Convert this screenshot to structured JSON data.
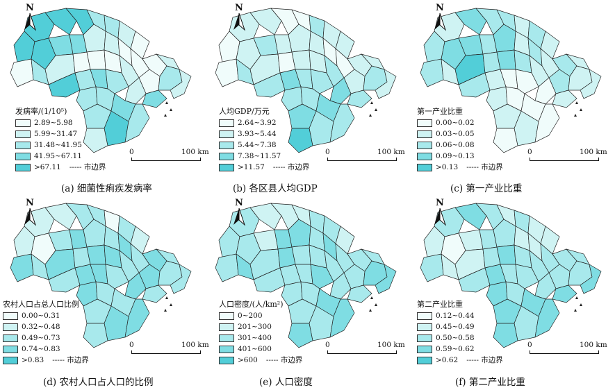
{
  "north_label": "N",
  "boundary_label": "----- 市边界",
  "scale": {
    "zero": "0",
    "dist": "100 km"
  },
  "colors": [
    "#f0fcfb",
    "#cff3f3",
    "#a8e9ec",
    "#7fdde3",
    "#52ced8"
  ],
  "panels": [
    {
      "caption": "(a) 细菌性痢疾发病率",
      "legend_title": "发病率/(1/10⁵)",
      "legend": [
        "2.89~5.98",
        "5.99~31.47",
        "31.48~41.95",
        "41.95~67.11",
        ">67.11"
      ]
    },
    {
      "caption": "(b) 各区县人均GDP",
      "legend_title": "人均GDP/万元",
      "legend": [
        "2.64~3.92",
        "3.93~5.44",
        "5.44~7.38",
        "7.38~11.57",
        ">11.57"
      ]
    },
    {
      "caption": "(c) 第一产业比重",
      "legend_title": "第一产业比重",
      "legend": [
        "0.00~0.02",
        "0.03~0.05",
        "0.06~0.08",
        "0.09~0.13",
        ">0.13"
      ]
    },
    {
      "caption": "(d) 农村人口占人口的比例",
      "legend_title": "农村人口占总人口比例",
      "legend": [
        "0.00~0.31",
        "0.32~0.48",
        "0.49~0.73",
        "0.74~0.83",
        ">0.83"
      ]
    },
    {
      "caption": "(e) 人口密度",
      "legend_title": "人口密度/(人/km²)",
      "legend": [
        "0~200",
        "201~300",
        "301~400",
        "401~600",
        ">600"
      ]
    },
    {
      "caption": "(f) 第二产业比重",
      "legend_title": "第二产业比重",
      "legend": [
        "0.12~0.44",
        "0.45~0.49",
        "0.50~0.58",
        "0.59~0.62",
        ">0.62"
      ]
    }
  ],
  "classes": [
    [
      4,
      4,
      4,
      2,
      2,
      1,
      0,
      4,
      4,
      3,
      3,
      1,
      1,
      0,
      0,
      0,
      1,
      0,
      2,
      1,
      0,
      0,
      0,
      1,
      0,
      2,
      1,
      4,
      2,
      3,
      2,
      1,
      3,
      2,
      2,
      3,
      2,
      4,
      1,
      2
    ],
    [
      1,
      1,
      0,
      0,
      2,
      1,
      1,
      0,
      1,
      2,
      1,
      1,
      1,
      0,
      0,
      1,
      1,
      0,
      2,
      1,
      0,
      1,
      1,
      2,
      1,
      2,
      1,
      2,
      3,
      2,
      2,
      3,
      2,
      2,
      2,
      3,
      3,
      2,
      4,
      2
    ],
    [
      1,
      3,
      2,
      2,
      1,
      2,
      1,
      2,
      3,
      3,
      2,
      3,
      1,
      2,
      1,
      2,
      1,
      2,
      1,
      4,
      2,
      3,
      2,
      1,
      2,
      1,
      1,
      2,
      1,
      0,
      0,
      0,
      1,
      1,
      0,
      0,
      1,
      1,
      0,
      0
    ],
    [
      1,
      1,
      2,
      2,
      0,
      2,
      1,
      1,
      0,
      2,
      3,
      2,
      2,
      3,
      2,
      3,
      2,
      3,
      2,
      3,
      2,
      3,
      3,
      2,
      3,
      2,
      2,
      2,
      3,
      3,
      2,
      3,
      2,
      3,
      2,
      2,
      2,
      3,
      2,
      3
    ],
    [
      2,
      1,
      1,
      1,
      2,
      2,
      1,
      2,
      2,
      1,
      3,
      3,
      2,
      3,
      2,
      2,
      2,
      2,
      3,
      2,
      3,
      2,
      2,
      2,
      2,
      3,
      3,
      2,
      2,
      2,
      3,
      2,
      2,
      2,
      2,
      3,
      2,
      2,
      3,
      3
    ],
    [
      2,
      3,
      2,
      1,
      2,
      1,
      1,
      1,
      0,
      1,
      2,
      2,
      1,
      1,
      2,
      2,
      2,
      2,
      1,
      1,
      2,
      3,
      2,
      2,
      2,
      2,
      3,
      2,
      3,
      2,
      2,
      2,
      3,
      3,
      2,
      3,
      3,
      2,
      3,
      3
    ]
  ]
}
